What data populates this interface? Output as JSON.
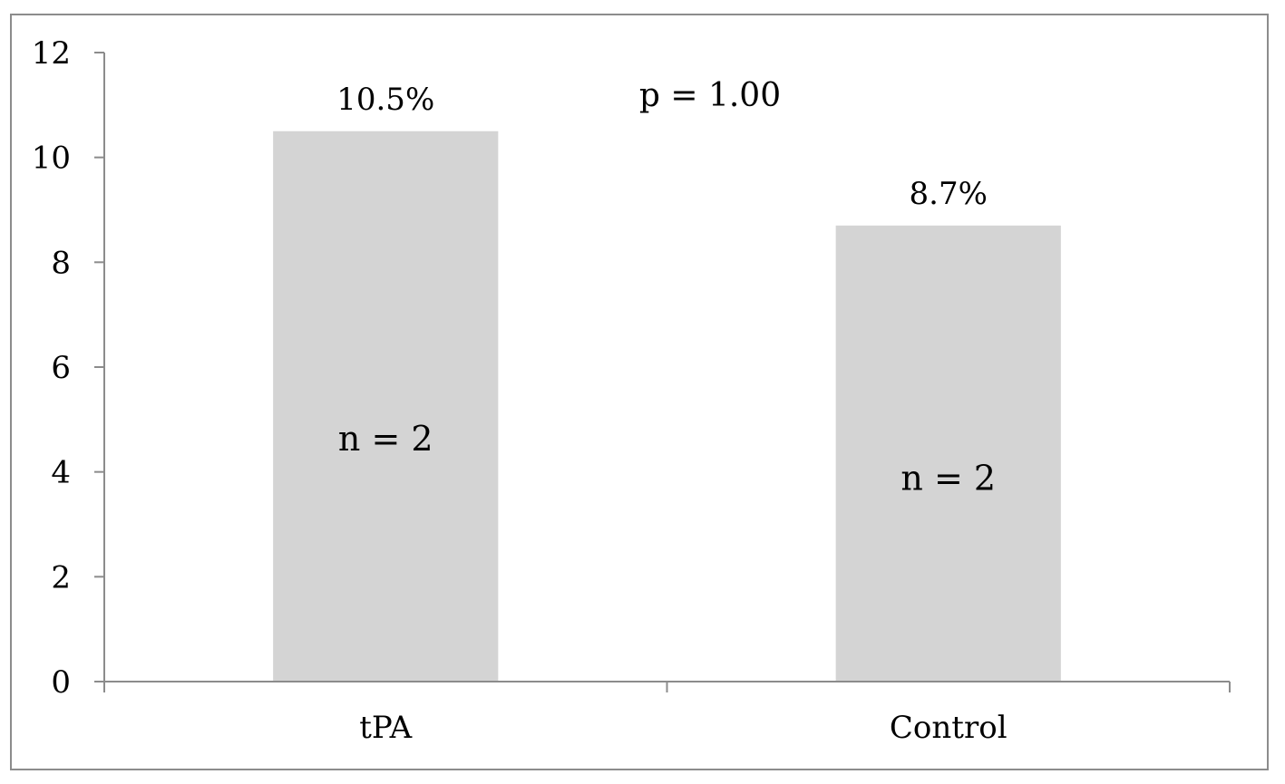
{
  "chart_data": {
    "type": "bar",
    "title": "",
    "xlabel": "",
    "ylabel": "",
    "categories": [
      "tPA",
      "Control"
    ],
    "values": [
      10.5,
      8.7
    ],
    "data_labels": [
      "10.5%",
      "8.7%"
    ],
    "bar_annotations": [
      "n = 2",
      "n = 2"
    ],
    "annotation": "p = 1.00",
    "ylim": [
      0,
      12
    ],
    "yticks": [
      0,
      2,
      4,
      6,
      8,
      10,
      12
    ],
    "grid": false,
    "legend": "none",
    "bar_color": "#d4d4d4",
    "axis_color": "#8c8c8c"
  }
}
